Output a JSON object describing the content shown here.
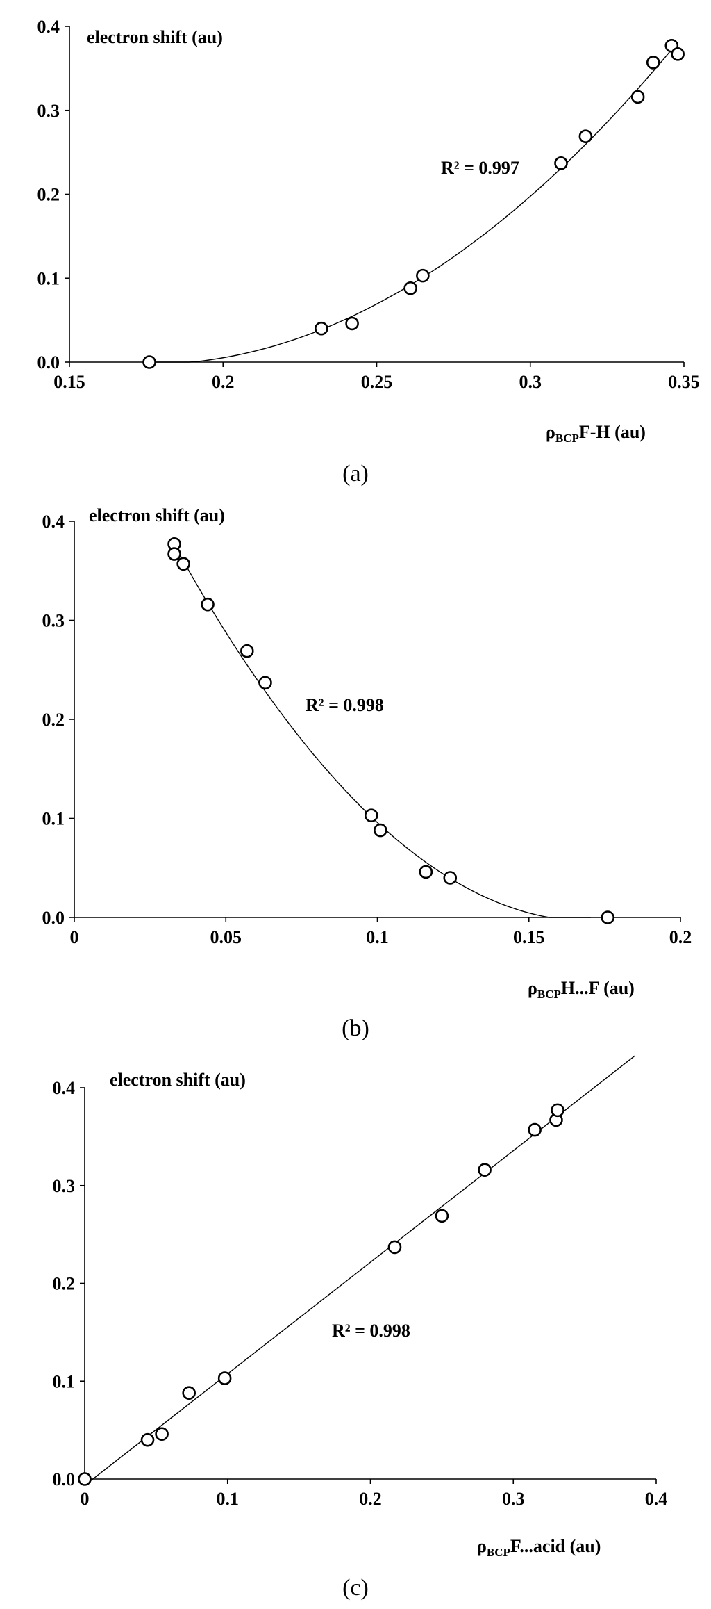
{
  "chart_data": [
    {
      "type": "scatter",
      "panel_label": "(a)",
      "ylabel": "electron shift (au)",
      "xlabel_prefix": "ρ",
      "xlabel_sub": "BCP",
      "xlabel_suffix": "F-H (au)",
      "r2_label": "R² = 0.997",
      "xlim": [
        0.15,
        0.35
      ],
      "ylim": [
        0.0,
        0.4
      ],
      "xticks": [
        "0.15",
        "0.2",
        "0.25",
        "0.3",
        "0.35"
      ],
      "yticks": [
        "0.0",
        "0.1",
        "0.2",
        "0.3",
        "0.4"
      ],
      "trendline": "polynomial",
      "grid": false,
      "points": [
        {
          "x": 0.176,
          "y": 0.0
        },
        {
          "x": 0.232,
          "y": 0.04
        },
        {
          "x": 0.242,
          "y": 0.046
        },
        {
          "x": 0.261,
          "y": 0.088
        },
        {
          "x": 0.265,
          "y": 0.103
        },
        {
          "x": 0.31,
          "y": 0.237
        },
        {
          "x": 0.318,
          "y": 0.269
        },
        {
          "x": 0.335,
          "y": 0.316
        },
        {
          "x": 0.34,
          "y": 0.357
        },
        {
          "x": 0.346,
          "y": 0.377
        },
        {
          "x": 0.348,
          "y": 0.367
        }
      ]
    },
    {
      "type": "scatter",
      "panel_label": "(b)",
      "ylabel": "electron shift (au)",
      "xlabel_prefix": "ρ",
      "xlabel_sub": "BCP",
      "xlabel_suffix": "H...F (au)",
      "r2_label": "R² = 0.998",
      "xlim": [
        0,
        0.2
      ],
      "ylim": [
        0.0,
        0.4
      ],
      "xticks": [
        "0",
        "0.05",
        "0.1",
        "0.15",
        "0.2"
      ],
      "yticks": [
        "0.0",
        "0.1",
        "0.2",
        "0.3",
        "0.4"
      ],
      "trendline": "polynomial",
      "grid": false,
      "points": [
        {
          "x": 0.033,
          "y": 0.377
        },
        {
          "x": 0.033,
          "y": 0.367
        },
        {
          "x": 0.036,
          "y": 0.357
        },
        {
          "x": 0.044,
          "y": 0.316
        },
        {
          "x": 0.057,
          "y": 0.269
        },
        {
          "x": 0.063,
          "y": 0.237
        },
        {
          "x": 0.098,
          "y": 0.103
        },
        {
          "x": 0.101,
          "y": 0.088
        },
        {
          "x": 0.116,
          "y": 0.046
        },
        {
          "x": 0.124,
          "y": 0.04
        },
        {
          "x": 0.176,
          "y": 0.0
        }
      ]
    },
    {
      "type": "scatter",
      "panel_label": "(c)",
      "ylabel": "electron shift (au)",
      "xlabel_prefix": "ρ",
      "xlabel_sub": "BCP",
      "xlabel_suffix": "F...acid (au)",
      "r2_label": "R² = 0.998",
      "xlim": [
        0,
        0.4
      ],
      "ylim": [
        0.0,
        0.4
      ],
      "xticks": [
        "0",
        "0.1",
        "0.2",
        "0.3",
        "0.4"
      ],
      "yticks": [
        "0.0",
        "0.1",
        "0.2",
        "0.3",
        "0.4"
      ],
      "trendline": "linear",
      "grid": false,
      "points": [
        {
          "x": 0.0,
          "y": 0.0
        },
        {
          "x": 0.044,
          "y": 0.04
        },
        {
          "x": 0.054,
          "y": 0.046
        },
        {
          "x": 0.073,
          "y": 0.088
        },
        {
          "x": 0.098,
          "y": 0.103
        },
        {
          "x": 0.217,
          "y": 0.237
        },
        {
          "x": 0.25,
          "y": 0.269
        },
        {
          "x": 0.28,
          "y": 0.316
        },
        {
          "x": 0.315,
          "y": 0.357
        },
        {
          "x": 0.33,
          "y": 0.367
        },
        {
          "x": 0.331,
          "y": 0.377
        }
      ]
    }
  ]
}
